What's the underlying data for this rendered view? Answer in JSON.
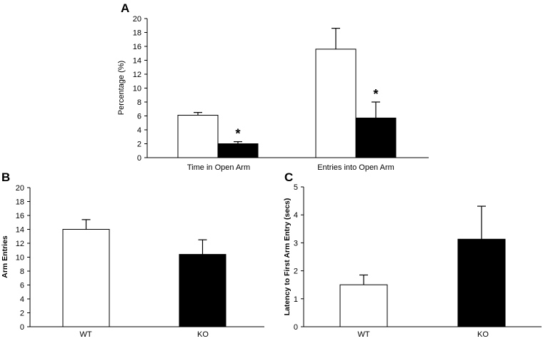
{
  "chart_data": [
    {
      "panel": "A",
      "type": "bar",
      "categories": [
        "Time in Open Arm",
        "Entries into Open Arm"
      ],
      "series": [
        {
          "color": "#ffffff",
          "values": [
            6.1,
            15.6
          ],
          "errors": [
            0.4,
            3.0
          ]
        },
        {
          "color": "#000000",
          "values": [
            2.0,
            5.7
          ],
          "errors": [
            0.3,
            2.3
          ]
        }
      ],
      "significance": [
        [
          "",
          "*"
        ],
        [
          "",
          "*"
        ]
      ],
      "ylabel": "Percentage (%)",
      "ylim": [
        0,
        20
      ],
      "yticks": [
        0,
        2,
        4,
        6,
        8,
        10,
        12,
        14,
        16,
        18,
        20
      ],
      "grid": false
    },
    {
      "panel": "B",
      "type": "bar",
      "categories": [
        "WT",
        "KO"
      ],
      "values": [
        14.0,
        10.4
      ],
      "errors": [
        1.4,
        2.1
      ],
      "colors": [
        "#ffffff",
        "#000000"
      ],
      "ylabel": "Arm Entries",
      "ylim": [
        0,
        20
      ],
      "yticks": [
        0,
        2,
        4,
        6,
        8,
        10,
        12,
        14,
        16,
        18,
        20
      ],
      "grid": false
    },
    {
      "panel": "C",
      "type": "bar",
      "categories": [
        "WT",
        "KO"
      ],
      "values": [
        1.5,
        3.13
      ],
      "errors": [
        0.35,
        1.18
      ],
      "colors": [
        "#ffffff",
        "#000000"
      ],
      "ylabel": "Latency to First Arm Entry (secs)",
      "ylim": [
        0,
        5
      ],
      "yticks": [
        0,
        1,
        2,
        3,
        4,
        5
      ],
      "grid": false
    }
  ]
}
